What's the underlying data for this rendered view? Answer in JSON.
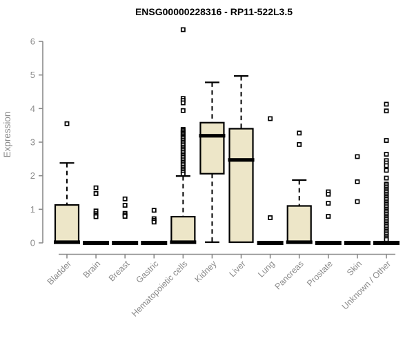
{
  "page": {
    "background": "#ffffff"
  },
  "chart_data": {
    "type": "boxplot",
    "title": "ENSG00000228316 - RP11-522L3.5",
    "ylabel": "Expression",
    "xlabel": "",
    "ylim": [
      0,
      6
    ],
    "yticks": [
      0,
      1,
      2,
      3,
      4,
      5,
      6
    ],
    "grid": false,
    "legend": null,
    "colors": {
      "box_fill": "#EDE6C8",
      "box_stroke": "#000000",
      "median": "#000000",
      "whisker": "#000000",
      "outlier_stroke": "#000000",
      "outlier_fill": "#ffffff",
      "axis": "#8a8a8a",
      "tick_label": "#8a8a8a",
      "title": "#000000"
    },
    "categories": [
      "Bladder",
      "Brain",
      "Breast",
      "Gastric",
      "Hematopoietic cells",
      "Kidney",
      "Liver",
      "Lung",
      "Pancreas",
      "Prostate",
      "Skin",
      "Unknown / Other"
    ],
    "boxes": [
      {
        "category": "Bladder",
        "q1": 0,
        "median": 0.02,
        "q3": 1.13,
        "whisker_low": 0,
        "whisker_high": 2.38,
        "outliers": [
          3.55
        ]
      },
      {
        "category": "Brain",
        "q1": 0,
        "median": 0,
        "q3": 0,
        "whisker_low": 0,
        "whisker_high": 0,
        "outliers": [
          1.64,
          1.47,
          0.95,
          0.87,
          0.82,
          0.78
        ]
      },
      {
        "category": "Breast",
        "q1": 0,
        "median": 0,
        "q3": 0,
        "whisker_low": 0,
        "whisker_high": 0,
        "outliers": [
          1.31,
          1.12,
          0.88,
          0.83,
          0.79
        ]
      },
      {
        "category": "Gastric",
        "q1": 0,
        "median": 0,
        "q3": 0,
        "whisker_low": 0,
        "whisker_high": 0,
        "outliers": [
          0.97,
          0.72,
          0.67,
          0.62
        ]
      },
      {
        "category": "Hematopoietic cells",
        "q1": 0,
        "median": 0.02,
        "q3": 0.78,
        "whisker_low": 0,
        "whisker_high": 1.99,
        "outliers": [
          6.35,
          4.3,
          4.24,
          4.17,
          3.94,
          3.38,
          3.34,
          3.3,
          3.26,
          3.22,
          3.18,
          3.14,
          3.1,
          3.05,
          3.0,
          2.95,
          2.9,
          2.85,
          2.8,
          2.75,
          2.7,
          2.65,
          2.6,
          2.55,
          2.5,
          2.45,
          2.4,
          2.35,
          2.3,
          2.25,
          2.2,
          2.15,
          2.1,
          2.05
        ]
      },
      {
        "category": "Kidney",
        "q1": 2.06,
        "median": 3.19,
        "q3": 3.58,
        "whisker_low": 0.02,
        "whisker_high": 4.78,
        "outliers": []
      },
      {
        "category": "Liver",
        "q1": 0.02,
        "median": 2.47,
        "q3": 3.4,
        "whisker_low": 0.02,
        "whisker_high": 4.97,
        "outliers": []
      },
      {
        "category": "Lung",
        "q1": 0,
        "median": 0,
        "q3": 0,
        "whisker_low": 0,
        "whisker_high": 0,
        "outliers": [
          3.7,
          0.75
        ]
      },
      {
        "category": "Pancreas",
        "q1": 0,
        "median": 0.02,
        "q3": 1.1,
        "whisker_low": 0,
        "whisker_high": 1.87,
        "outliers": [
          3.27,
          2.93
        ]
      },
      {
        "category": "Prostate",
        "q1": 0,
        "median": 0,
        "q3": 0,
        "whisker_low": 0,
        "whisker_high": 0,
        "outliers": [
          1.52,
          1.45,
          1.18,
          0.79
        ]
      },
      {
        "category": "Skin",
        "q1": 0,
        "median": 0,
        "q3": 0,
        "whisker_low": 0,
        "whisker_high": 0,
        "outliers": [
          2.57,
          1.82,
          1.23
        ]
      },
      {
        "category": "Unknown / Other",
        "q1": 0,
        "median": 0,
        "q3": 0,
        "whisker_low": 0,
        "whisker_high": 0,
        "outliers": [
          4.13,
          3.93,
          3.05,
          2.64,
          2.45,
          2.38,
          2.3,
          2.16,
          1.93,
          1.75,
          1.7,
          1.65,
          1.6,
          1.55,
          1.5,
          1.45,
          1.4,
          1.35,
          1.3,
          1.25,
          1.2,
          1.15,
          1.1,
          1.05,
          1.0,
          0.95,
          0.9,
          0.85,
          0.8,
          0.75,
          0.7,
          0.65,
          0.6,
          0.55,
          0.5,
          0.45,
          0.4,
          0.35,
          0.3,
          0.25,
          0.2,
          0.15,
          0.1
        ]
      }
    ]
  }
}
